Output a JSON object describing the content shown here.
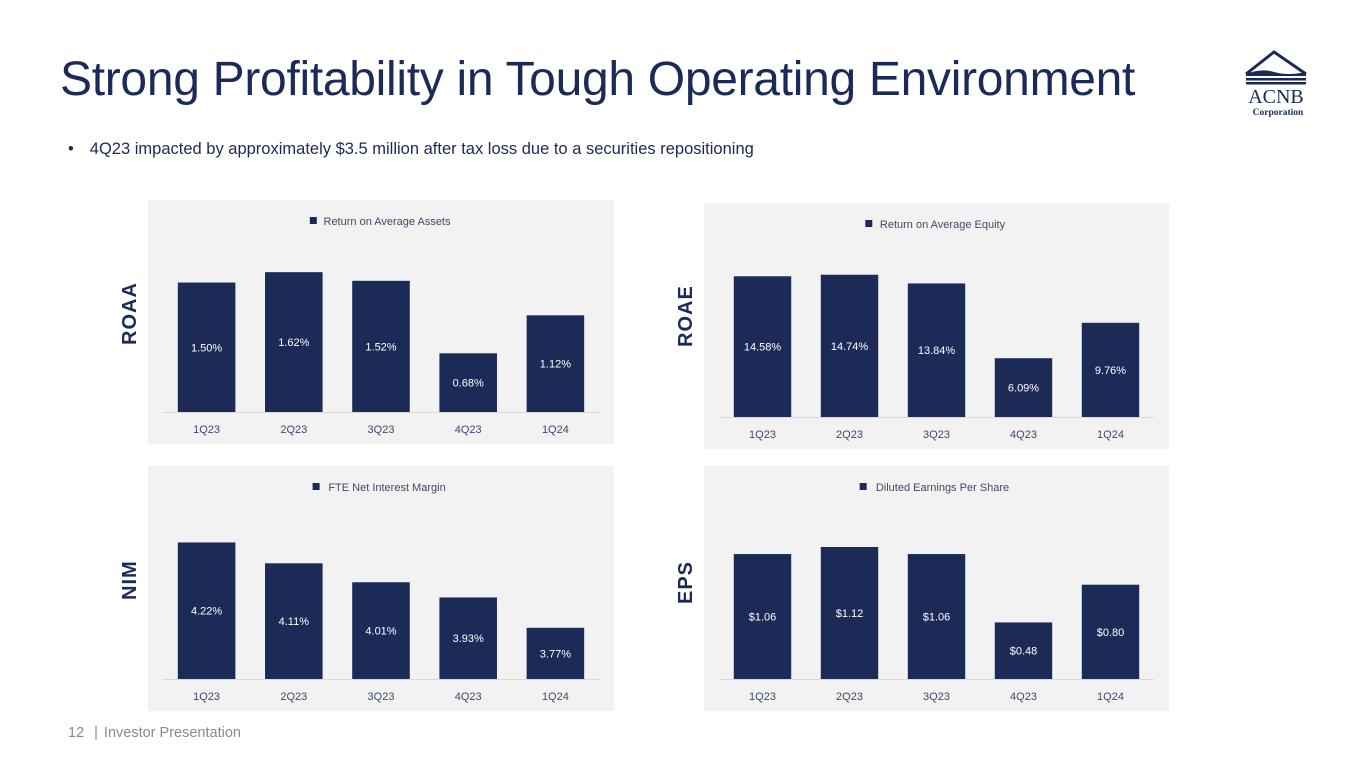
{
  "header": {
    "title": "Strong Profitability in Tough Operating Environment",
    "bullet": "4Q23 impacted by approximately $3.5 million after tax loss due to a securities repositioning",
    "bullet_marker": "•"
  },
  "logo": {
    "name": "ACNB",
    "subtitle": "Corporation",
    "icon": "building-roof-icon"
  },
  "footer": {
    "page_number": "12",
    "separator": "|",
    "label": "Investor Presentation"
  },
  "colors": {
    "bar": "#1b2a56",
    "panel_bg": "#f2f2f2",
    "title": "#1b2a56",
    "label_text": "#ffffff",
    "axis_text": "#3a4a6e"
  },
  "chart_data": [
    {
      "id": "roaa",
      "side_label": "ROAA",
      "type": "bar",
      "title": "",
      "legend": "Return on Average Assets",
      "legend_position": "top",
      "categories": [
        "1Q23",
        "2Q23",
        "3Q23",
        "4Q23",
        "1Q24"
      ],
      "values": [
        1.5,
        1.62,
        1.52,
        0.68,
        1.12
      ],
      "data_labels": [
        "1.50%",
        "1.62%",
        "1.52%",
        "0.68%",
        "1.12%"
      ],
      "ylim": [
        0,
        1.9
      ],
      "xlabel": "",
      "ylabel": "",
      "grid": false
    },
    {
      "id": "roae",
      "side_label": "ROAE",
      "type": "bar",
      "title": "",
      "legend": "Return on Average Equity",
      "legend_position": "top",
      "categories": [
        "1Q23",
        "2Q23",
        "3Q23",
        "4Q23",
        "1Q24"
      ],
      "values": [
        14.58,
        14.74,
        13.84,
        6.09,
        9.76
      ],
      "data_labels": [
        "14.58%",
        "14.74%",
        "13.84%",
        "6.09%",
        "9.76%"
      ],
      "ylim": [
        0,
        17.2
      ],
      "xlabel": "",
      "ylabel": "",
      "grid": false
    },
    {
      "id": "nim",
      "side_label": "NIM",
      "type": "bar",
      "title": "",
      "legend": "FTE Net Interest Margin",
      "legend_position": "top",
      "categories": [
        "1Q23",
        "2Q23",
        "3Q23",
        "4Q23",
        "1Q24"
      ],
      "values": [
        4.22,
        4.11,
        4.01,
        3.93,
        3.77
      ],
      "data_labels": [
        "4.22%",
        "4.11%",
        "4.01%",
        "3.93%",
        "3.77%"
      ],
      "ylim": [
        3.5,
        4.37
      ],
      "xlabel": "",
      "ylabel": "",
      "grid": false
    },
    {
      "id": "eps",
      "side_label": "EPS",
      "type": "bar",
      "title": "",
      "legend": "Diluted Earnings Per Share",
      "legend_position": "top",
      "categories": [
        "1Q23",
        "2Q23",
        "3Q23",
        "4Q23",
        "1Q24"
      ],
      "values": [
        1.06,
        1.12,
        1.06,
        0.48,
        0.8
      ],
      "data_labels": [
        "$1.06",
        "$1.12",
        "$1.06",
        "$0.48",
        "$0.80"
      ],
      "ylim": [
        0,
        1.4
      ],
      "xlabel": "",
      "ylabel": "",
      "grid": false
    }
  ]
}
